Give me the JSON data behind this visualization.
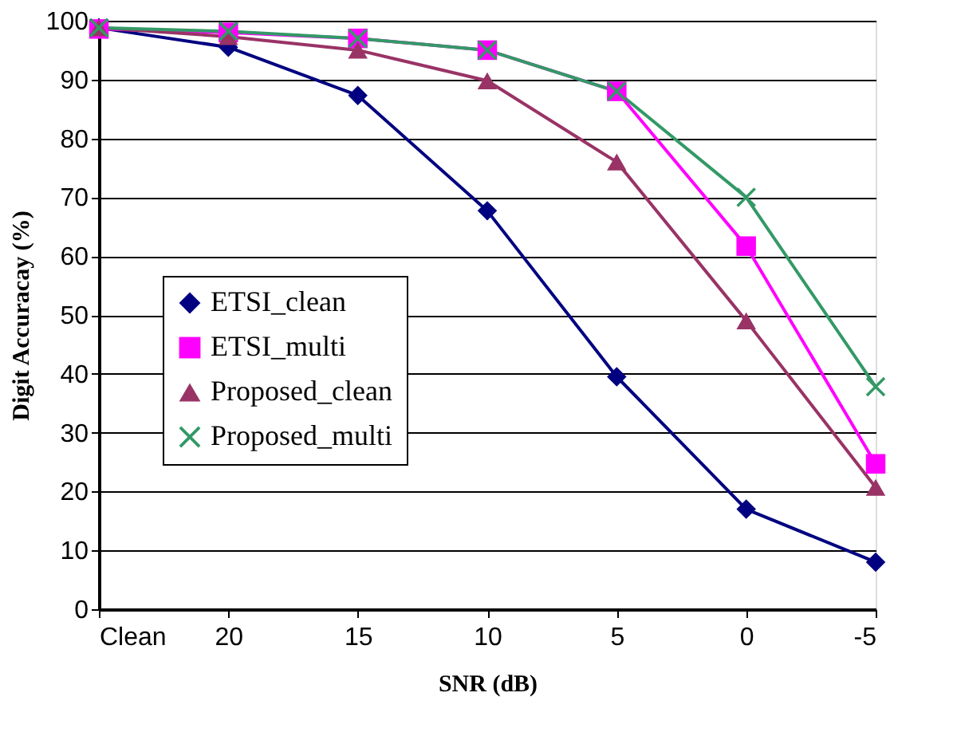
{
  "chart_data": {
    "type": "line",
    "xlabel": "SNR (dB)",
    "ylabel": "Digit Accuracay (%)",
    "categories": [
      "Clean",
      "20",
      "15",
      "10",
      "5",
      "0",
      "-5"
    ],
    "series": [
      {
        "name": "ETSI_clean",
        "color": "#000080",
        "marker": "diamond",
        "values": [
          98.8,
          95.5,
          87.3,
          67.7,
          39.5,
          17,
          8
        ]
      },
      {
        "name": "ETSI_multi",
        "color": "#ff00ff",
        "marker": "square",
        "values": [
          98.6,
          98,
          97,
          95,
          88,
          61.7,
          24.7
        ]
      },
      {
        "name": "Proposed_clean",
        "color": "#993366",
        "marker": "triangle",
        "values": [
          98.8,
          97.3,
          95,
          89.8,
          76,
          49,
          20.7
        ]
      },
      {
        "name": "Proposed_multi",
        "color": "#339966",
        "marker": "cross",
        "values": [
          98.8,
          98.2,
          97,
          95,
          88,
          70,
          37.8
        ]
      }
    ],
    "ylim": [
      0,
      100
    ],
    "yticks": [
      0,
      10,
      20,
      30,
      40,
      50,
      60,
      70,
      80,
      90,
      100
    ],
    "grid": "y",
    "legend": "left",
    "line_style": "solid"
  }
}
